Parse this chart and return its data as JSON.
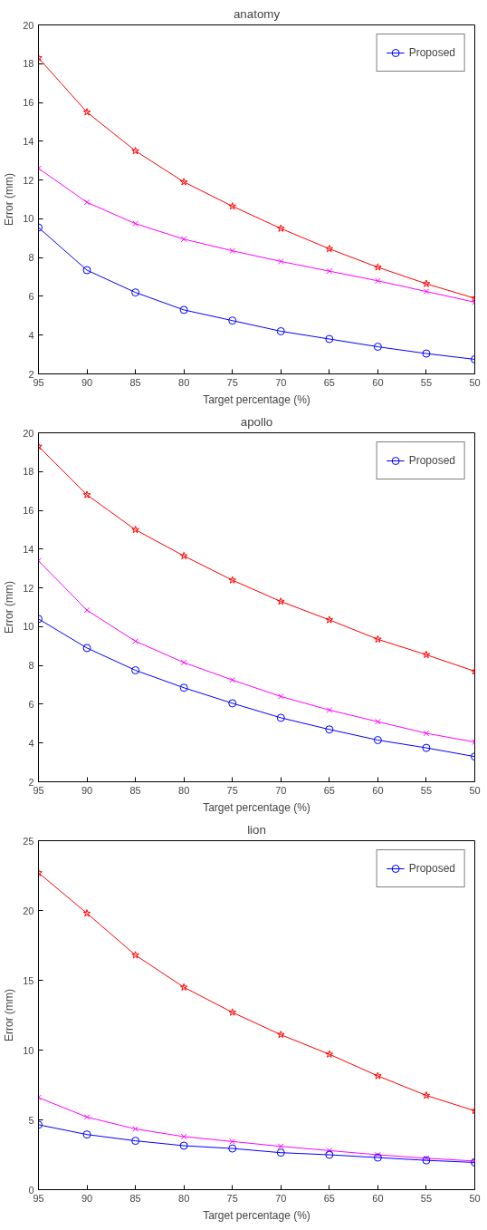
{
  "chart_data": [
    {
      "type": "line",
      "title": "anatomy",
      "xlabel": "Target percentage (%)",
      "ylabel": "Error (mm)",
      "x": [
        95,
        90,
        85,
        80,
        75,
        70,
        65,
        60,
        55,
        50
      ],
      "xlim": [
        95,
        50
      ],
      "xticks": [
        95,
        90,
        85,
        80,
        75,
        70,
        65,
        60,
        55,
        50
      ],
      "ylim": [
        2,
        20
      ],
      "yticks": [
        2,
        4,
        6,
        8,
        10,
        12,
        14,
        16,
        18,
        20
      ],
      "grid": false,
      "legend": "top right",
      "series": [
        {
          "color": "#ff0000",
          "marker": "star",
          "values": [
            18.3,
            15.5,
            13.5,
            11.9,
            10.65,
            9.5,
            8.45,
            7.5,
            6.65,
            5.9
          ]
        },
        {
          "color": "#ff00ff",
          "marker": "cross",
          "values": [
            12.6,
            10.85,
            9.75,
            8.95,
            8.35,
            7.8,
            7.3,
            6.8,
            6.25,
            5.7
          ]
        },
        {
          "name": "Proposed",
          "color": "#0000ff",
          "marker": "circle",
          "values": [
            9.55,
            7.35,
            6.2,
            5.3,
            4.75,
            4.2,
            3.8,
            3.4,
            3.05,
            2.75
          ]
        }
      ]
    },
    {
      "type": "line",
      "title": "apollo",
      "xlabel": "Target percentage (%)",
      "ylabel": "Error (mm)",
      "x": [
        95,
        90,
        85,
        80,
        75,
        70,
        65,
        60,
        55,
        50
      ],
      "xlim": [
        95,
        50
      ],
      "xticks": [
        95,
        90,
        85,
        80,
        75,
        70,
        65,
        60,
        55,
        50
      ],
      "ylim": [
        2,
        20
      ],
      "yticks": [
        2,
        4,
        6,
        8,
        10,
        12,
        14,
        16,
        18,
        20
      ],
      "grid": false,
      "legend": "top right",
      "series": [
        {
          "color": "#ff0000",
          "marker": "star",
          "values": [
            19.3,
            16.8,
            15.0,
            13.65,
            12.4,
            11.3,
            10.35,
            9.35,
            8.55,
            7.7
          ]
        },
        {
          "color": "#ff00ff",
          "marker": "cross",
          "values": [
            13.4,
            10.85,
            9.25,
            8.15,
            7.25,
            6.4,
            5.7,
            5.1,
            4.5,
            4.05
          ]
        },
        {
          "name": "Proposed",
          "color": "#0000ff",
          "marker": "circle",
          "values": [
            10.4,
            8.9,
            7.75,
            6.85,
            6.05,
            5.3,
            4.7,
            4.15,
            3.75,
            3.3
          ]
        }
      ]
    },
    {
      "type": "line",
      "title": "lion",
      "xlabel": "Target percentage (%)",
      "ylabel": "Error (mm)",
      "x": [
        95,
        90,
        85,
        80,
        75,
        70,
        65,
        60,
        55,
        50
      ],
      "xlim": [
        95,
        50
      ],
      "xticks": [
        95,
        90,
        85,
        80,
        75,
        70,
        65,
        60,
        55,
        50
      ],
      "ylim": [
        0,
        25
      ],
      "yticks": [
        0,
        5,
        10,
        15,
        20,
        25
      ],
      "grid": false,
      "legend": "top right",
      "series": [
        {
          "color": "#ff0000",
          "marker": "star",
          "values": [
            22.7,
            19.8,
            16.8,
            14.5,
            12.7,
            11.1,
            9.7,
            8.15,
            6.75,
            5.65
          ]
        },
        {
          "color": "#ff00ff",
          "marker": "cross",
          "values": [
            6.6,
            5.2,
            4.35,
            3.8,
            3.45,
            3.1,
            2.8,
            2.5,
            2.25,
            2.05
          ]
        },
        {
          "name": "Proposed",
          "color": "#0000ff",
          "marker": "circle",
          "values": [
            4.65,
            3.95,
            3.5,
            3.15,
            2.95,
            2.65,
            2.5,
            2.3,
            2.1,
            1.95
          ]
        }
      ]
    }
  ]
}
